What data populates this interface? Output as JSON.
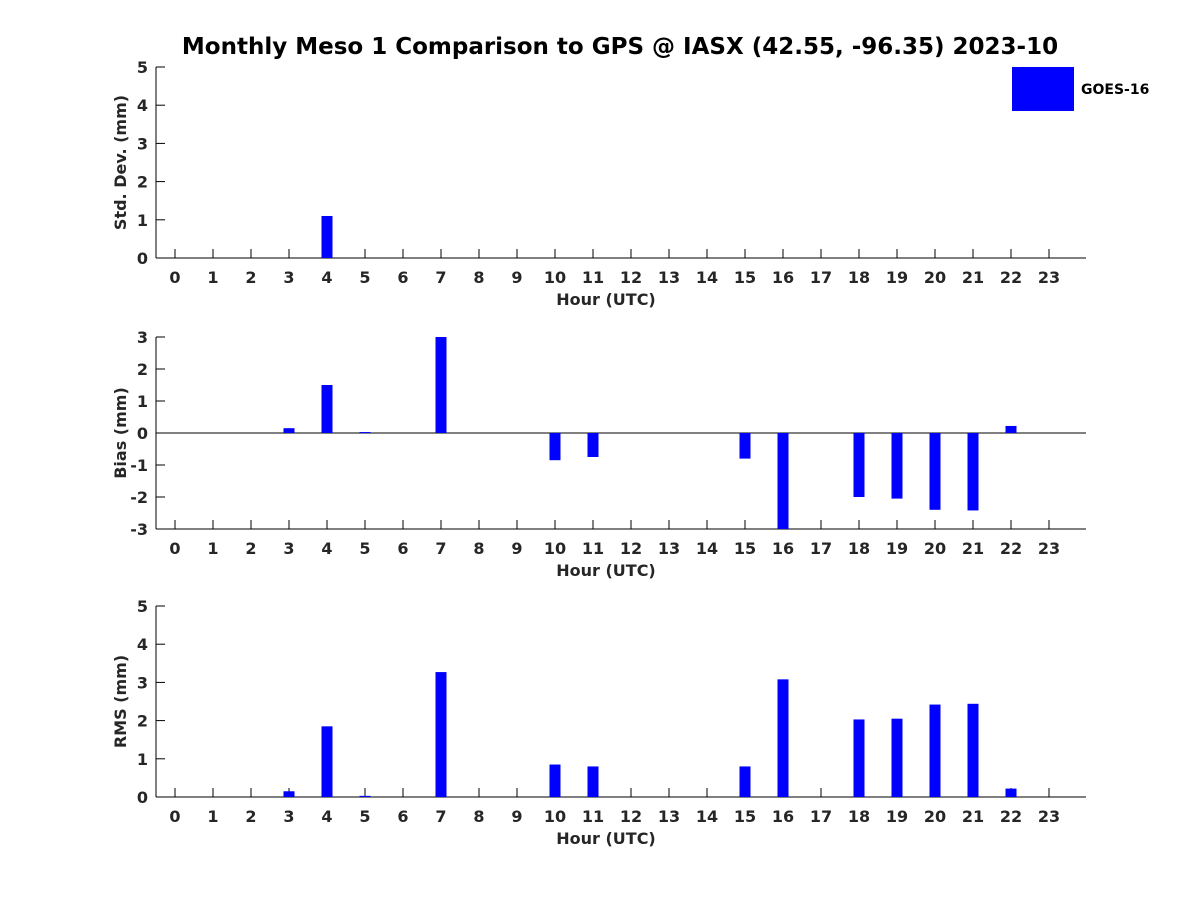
{
  "title": "Monthly Meso 1 Comparison to GPS @ IASX (42.55, -96.35) 2023-10",
  "legend": {
    "label": "GOES-16",
    "color": "#0000ff",
    "placement": "top-right"
  },
  "chart_data": [
    {
      "type": "bar",
      "xlabel": "Hour (UTC)",
      "ylabel": "Std. Dev. (mm)",
      "ylim": [
        0,
        5
      ],
      "yticks": [
        "0",
        "1",
        "2",
        "3",
        "4",
        "5"
      ],
      "categories": [
        "0",
        "1",
        "2",
        "3",
        "4",
        "5",
        "6",
        "7",
        "8",
        "9",
        "10",
        "11",
        "12",
        "13",
        "14",
        "15",
        "16",
        "17",
        "18",
        "19",
        "20",
        "21",
        "22",
        "23"
      ],
      "series": [
        {
          "name": "GOES-16",
          "values": [
            null,
            null,
            null,
            null,
            1.1,
            null,
            null,
            null,
            null,
            null,
            null,
            null,
            null,
            null,
            null,
            null,
            null,
            null,
            null,
            null,
            null,
            null,
            null,
            null
          ]
        }
      ],
      "bar_color": "#0000ff",
      "zero_line": false
    },
    {
      "type": "bar",
      "xlabel": "Hour (UTC)",
      "ylabel": "Bias (mm)",
      "ylim": [
        -3,
        3
      ],
      "yticks": [
        "-3",
        "-2",
        "-1",
        "0",
        "1",
        "2",
        "3"
      ],
      "categories": [
        "0",
        "1",
        "2",
        "3",
        "4",
        "5",
        "6",
        "7",
        "8",
        "9",
        "10",
        "11",
        "12",
        "13",
        "14",
        "15",
        "16",
        "17",
        "18",
        "19",
        "20",
        "21",
        "22",
        "23"
      ],
      "series": [
        {
          "name": "GOES-16",
          "values": [
            null,
            null,
            null,
            0.15,
            1.5,
            0.03,
            null,
            3.0,
            null,
            null,
            -0.85,
            -0.75,
            null,
            null,
            null,
            -0.8,
            -3.0,
            null,
            -2.0,
            -2.05,
            -2.4,
            -2.42,
            0.22,
            null
          ]
        }
      ],
      "bar_color": "#0000ff",
      "zero_line": true
    },
    {
      "type": "bar",
      "xlabel": "Hour (UTC)",
      "ylabel": "RMS (mm)",
      "ylim": [
        0,
        5
      ],
      "yticks": [
        "0",
        "1",
        "2",
        "3",
        "4",
        "5"
      ],
      "categories": [
        "0",
        "1",
        "2",
        "3",
        "4",
        "5",
        "6",
        "7",
        "8",
        "9",
        "10",
        "11",
        "12",
        "13",
        "14",
        "15",
        "16",
        "17",
        "18",
        "19",
        "20",
        "21",
        "22",
        "23"
      ],
      "series": [
        {
          "name": "GOES-16",
          "values": [
            null,
            null,
            null,
            0.15,
            1.85,
            0.03,
            null,
            3.27,
            null,
            null,
            0.85,
            0.8,
            null,
            null,
            null,
            0.8,
            3.08,
            null,
            2.03,
            2.05,
            2.42,
            2.44,
            0.22,
            null
          ]
        }
      ],
      "bar_color": "#0000ff",
      "zero_line": false
    }
  ]
}
